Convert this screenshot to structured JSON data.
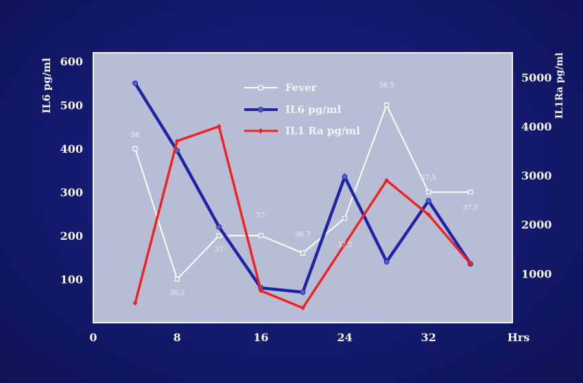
{
  "chart_data": {
    "type": "line",
    "title": "",
    "xlabel": "Hrs",
    "ylabel_left": "IL6 pg/ml",
    "ylabel_right": "IL1Ra pg/ml",
    "x_ticks": [
      0,
      8,
      16,
      24,
      32
    ],
    "xlim": [
      0,
      40
    ],
    "ylim_left": [
      0,
      620
    ],
    "ylim_right": [
      0,
      5500
    ],
    "y_ticks_left": [
      100,
      200,
      300,
      400,
      500,
      600
    ],
    "y_ticks_right": [
      1000,
      2000,
      3000,
      4000,
      5000
    ],
    "legend_position": "top-center",
    "series": [
      {
        "name": "Fever",
        "axis": "left",
        "color": "#ffffff",
        "marker": "square",
        "x": [
          4,
          8,
          12,
          16,
          20,
          24,
          28,
          32,
          36
        ],
        "values": [
          400,
          100,
          200,
          200,
          160,
          240,
          500,
          300,
          300
        ],
        "labels": [
          "38",
          "36,5",
          "37",
          "37",
          "36,7",
          "37,2",
          "38,5",
          "37,5",
          "37,5"
        ]
      },
      {
        "name": "IL6 pg/ml",
        "axis": "left",
        "color": "#1e24a4",
        "marker": "circle",
        "x": [
          4,
          8,
          12,
          16,
          20,
          24,
          28,
          32,
          36
        ],
        "values": [
          550,
          395,
          220,
          80,
          70,
          335,
          140,
          280,
          135
        ]
      },
      {
        "name": "IL1 Ra pg/ml",
        "axis": "right",
        "color": "#ee2222",
        "marker": "diamond",
        "x": [
          4,
          8,
          12,
          16,
          20,
          24,
          28,
          32,
          36
        ],
        "values": [
          400,
          3700,
          4000,
          650,
          300,
          1600,
          2900,
          2200,
          1200
        ]
      }
    ]
  }
}
